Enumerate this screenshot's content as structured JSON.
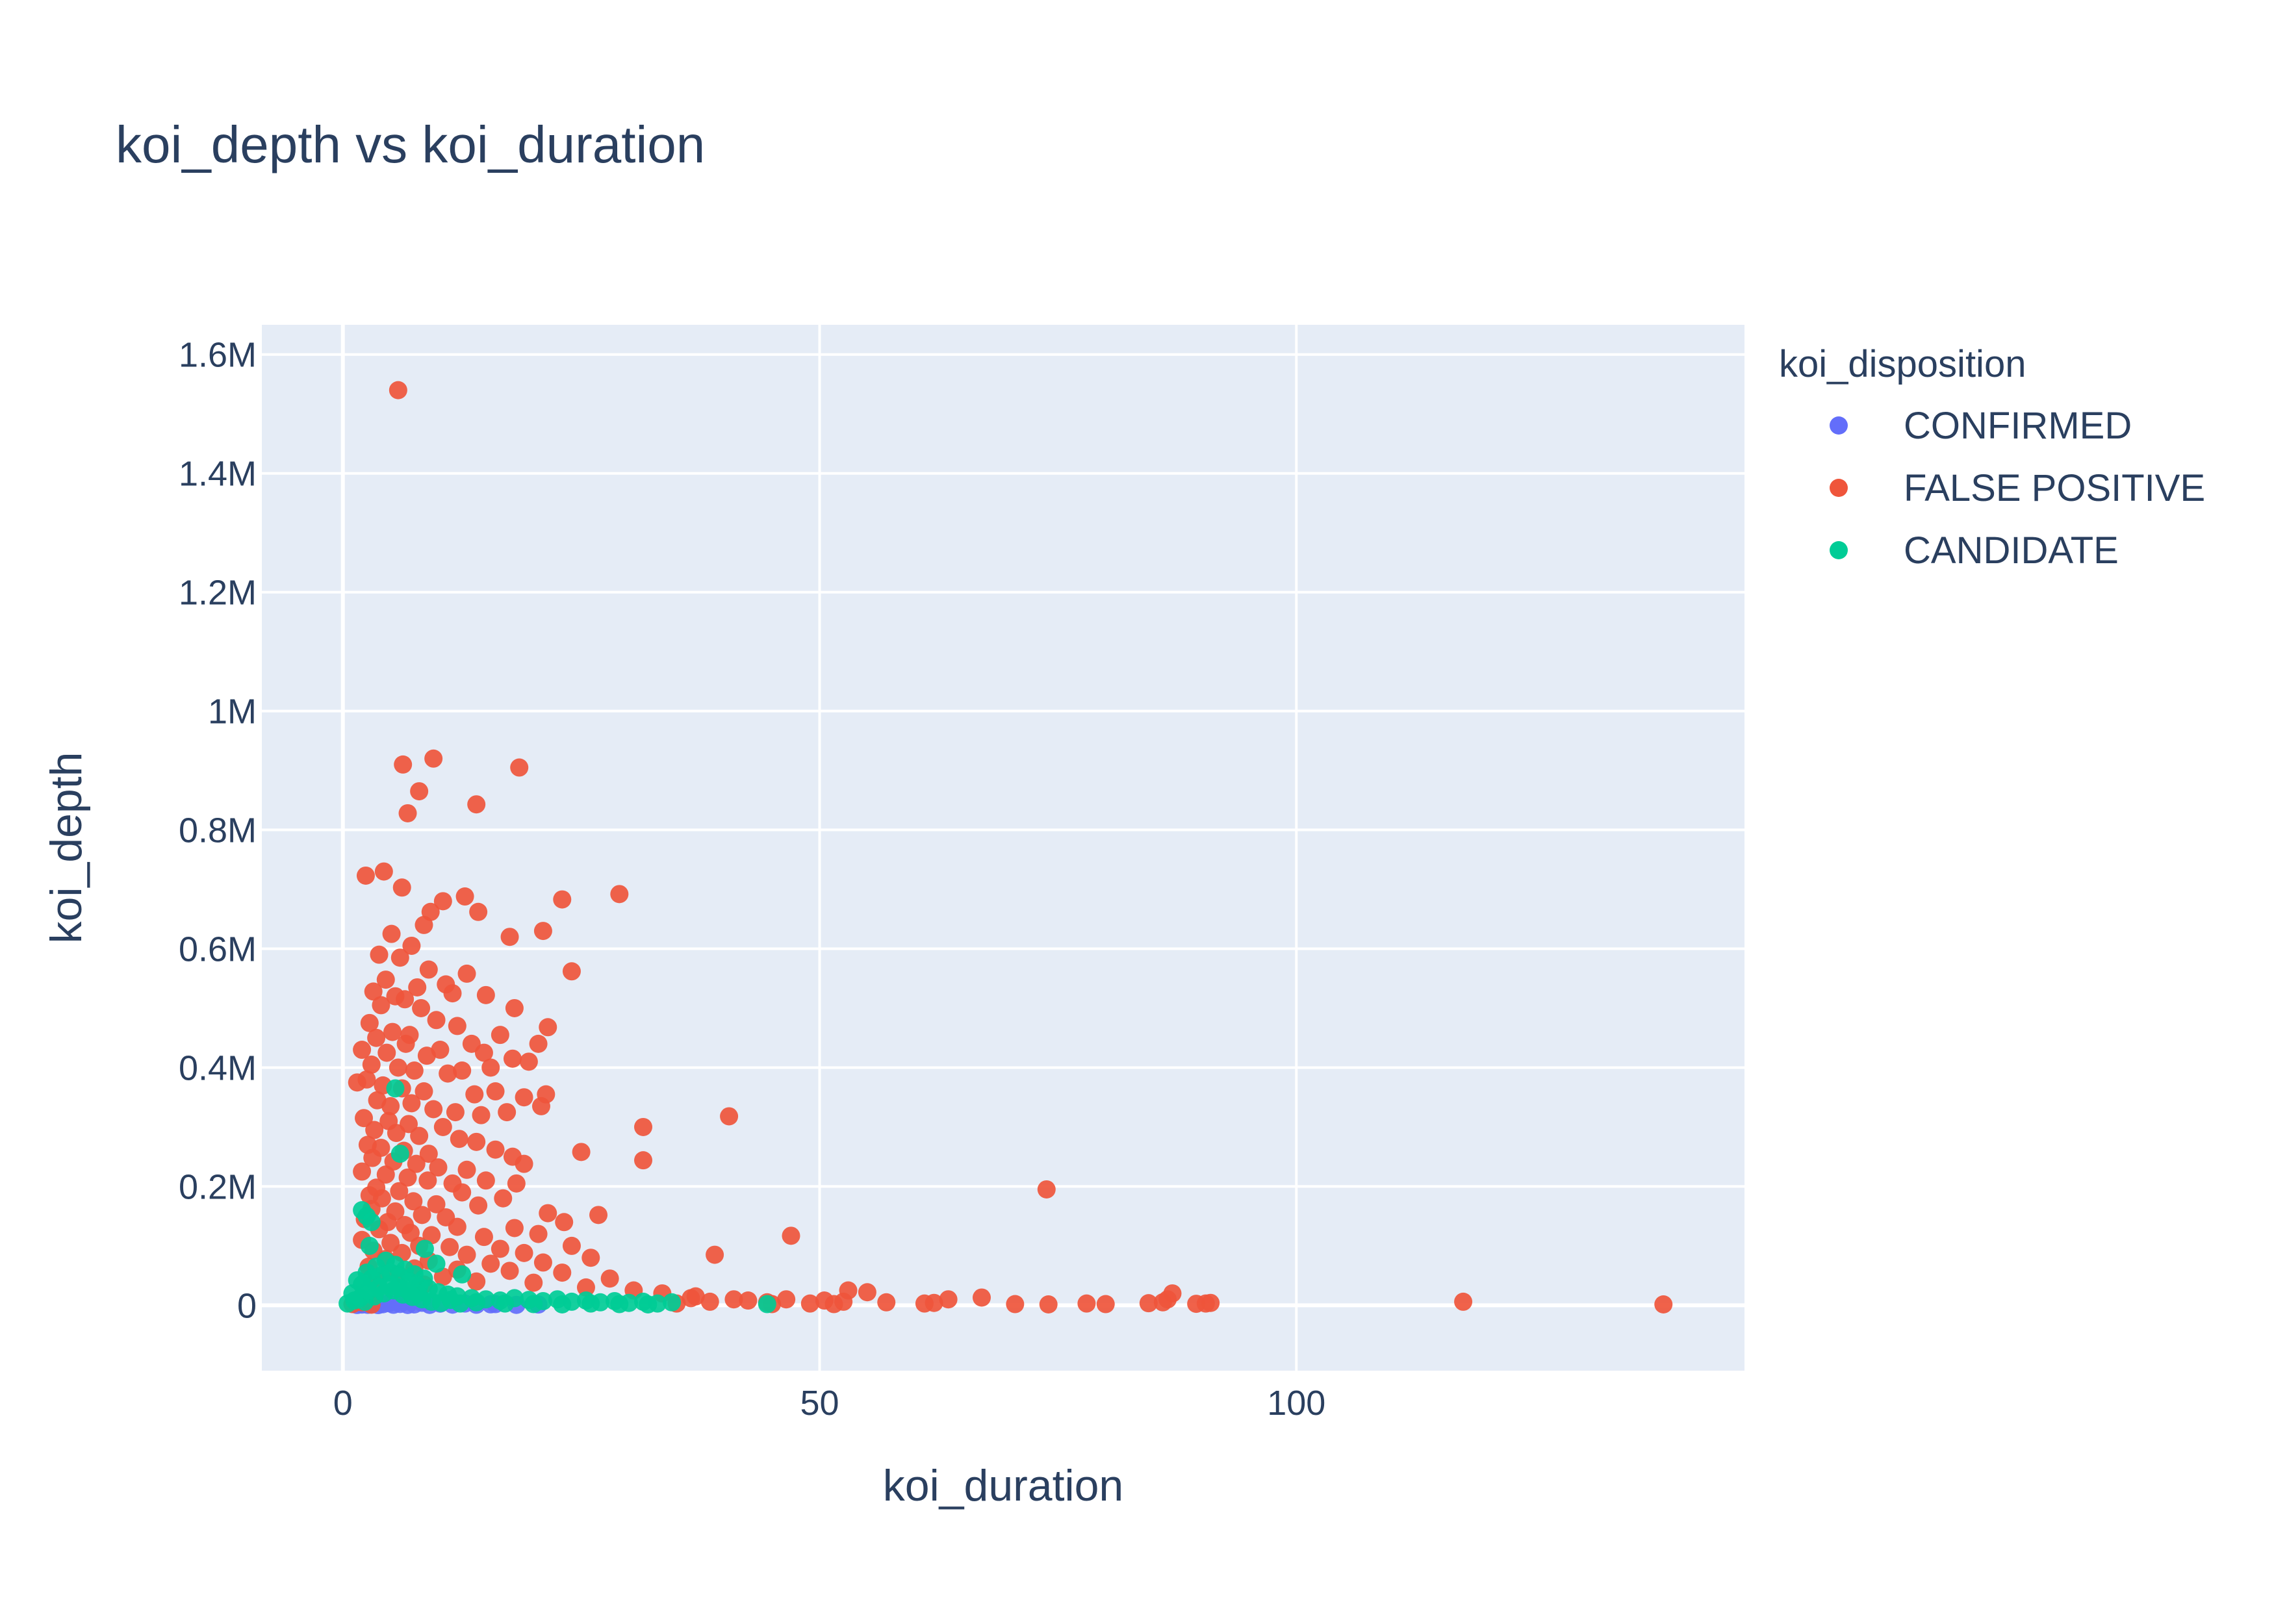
{
  "chart_data": {
    "type": "scatter",
    "title": "koi_depth vs koi_duration",
    "xlabel": "koi_duration",
    "ylabel": "koi_depth",
    "xlim": [
      -8.5,
      147
    ],
    "ylim": [
      -110000,
      1650000
    ],
    "x_ticks": [
      {
        "value": 0,
        "label": "0"
      },
      {
        "value": 50,
        "label": "50"
      },
      {
        "value": 100,
        "label": "100"
      }
    ],
    "y_ticks": [
      {
        "value": 0,
        "label": "0"
      },
      {
        "value": 200000,
        "label": "0.2M"
      },
      {
        "value": 400000,
        "label": "0.4M"
      },
      {
        "value": 600000,
        "label": "0.6M"
      },
      {
        "value": 800000,
        "label": "0.8M"
      },
      {
        "value": 1000000,
        "label": "1M"
      },
      {
        "value": 1200000,
        "label": "1.2M"
      },
      {
        "value": 1400000,
        "label": "1.4M"
      },
      {
        "value": 1600000,
        "label": "1.6M"
      }
    ],
    "grid": true,
    "plot_background": "#e5ecf6",
    "legend": {
      "title": "koi_disposition",
      "position": "right"
    },
    "series": [
      {
        "name": "CONFIRMED",
        "color": "#636efa",
        "points": [
          [
            1.5,
            500
          ],
          [
            2.0,
            1200
          ],
          [
            2.6,
            800
          ],
          [
            3.1,
            2500
          ],
          [
            3.7,
            400
          ],
          [
            4.2,
            1800
          ],
          [
            4.8,
            3500
          ],
          [
            5.3,
            900
          ],
          [
            6.0,
            2200
          ],
          [
            6.8,
            600
          ],
          [
            7.5,
            1500
          ],
          [
            8.3,
            4200
          ],
          [
            9.1,
            700
          ],
          [
            10.2,
            2800
          ],
          [
            11.5,
            1100
          ],
          [
            12.8,
            3000
          ],
          [
            14.0,
            900
          ],
          [
            15.5,
            1600
          ],
          [
            16.0,
            2000
          ],
          [
            18.2,
            700
          ],
          [
            20.5,
            1300
          ]
        ]
      },
      {
        "name": "FALSE POSITIVE",
        "color": "#ef553b",
        "points": [
          [
            5.8,
            1540000
          ],
          [
            9.5,
            920000
          ],
          [
            6.3,
            910000
          ],
          [
            18.5,
            905000
          ],
          [
            8.0,
            865000
          ],
          [
            14.0,
            843000
          ],
          [
            6.8,
            828000
          ],
          [
            4.3,
            730000
          ],
          [
            2.4,
            723000
          ],
          [
            6.2,
            703000
          ],
          [
            29.0,
            692000
          ],
          [
            12.8,
            688000
          ],
          [
            23.0,
            683000
          ],
          [
            10.5,
            680000
          ],
          [
            9.2,
            662000
          ],
          [
            14.2,
            662000
          ],
          [
            8.5,
            640000
          ],
          [
            21.0,
            630000
          ],
          [
            5.1,
            625000
          ],
          [
            17.5,
            620000
          ],
          [
            7.2,
            605000
          ],
          [
            3.8,
            590000
          ],
          [
            6.0,
            585000
          ],
          [
            9.0,
            565000
          ],
          [
            13.0,
            558000
          ],
          [
            24.0,
            562000
          ],
          [
            4.5,
            548000
          ],
          [
            7.8,
            535000
          ],
          [
            3.2,
            528000
          ],
          [
            10.8,
            540000
          ],
          [
            5.5,
            520000
          ],
          [
            6.5,
            515000
          ],
          [
            11.5,
            525000
          ],
          [
            15.0,
            522000
          ],
          [
            4.0,
            505000
          ],
          [
            8.2,
            500000
          ],
          [
            18.0,
            500000
          ],
          [
            9.8,
            480000
          ],
          [
            2.8,
            475000
          ],
          [
            12.0,
            470000
          ],
          [
            21.5,
            468000
          ],
          [
            5.2,
            460000
          ],
          [
            7.0,
            455000
          ],
          [
            16.5,
            455000
          ],
          [
            3.5,
            450000
          ],
          [
            6.6,
            440000
          ],
          [
            13.5,
            440000
          ],
          [
            20.5,
            440000
          ],
          [
            2.0,
            430000
          ],
          [
            4.6,
            425000
          ],
          [
            8.8,
            420000
          ],
          [
            10.2,
            430000
          ],
          [
            14.8,
            425000
          ],
          [
            17.8,
            415000
          ],
          [
            19.5,
            410000
          ],
          [
            3.0,
            405000
          ],
          [
            5.8,
            400000
          ],
          [
            7.5,
            395000
          ],
          [
            11.0,
            390000
          ],
          [
            12.5,
            395000
          ],
          [
            15.5,
            400000
          ],
          [
            1.5,
            375000
          ],
          [
            2.5,
            380000
          ],
          [
            4.2,
            370000
          ],
          [
            6.2,
            365000
          ],
          [
            8.5,
            360000
          ],
          [
            13.8,
            355000
          ],
          [
            16.0,
            360000
          ],
          [
            19.0,
            350000
          ],
          [
            21.3,
            355000
          ],
          [
            20.8,
            335000
          ],
          [
            3.6,
            345000
          ],
          [
            5.0,
            335000
          ],
          [
            7.2,
            340000
          ],
          [
            9.5,
            330000
          ],
          [
            11.8,
            325000
          ],
          [
            14.5,
            320000
          ],
          [
            17.2,
            325000
          ],
          [
            2.2,
            315000
          ],
          [
            4.8,
            310000
          ],
          [
            6.9,
            305000
          ],
          [
            10.5,
            300000
          ],
          [
            31.5,
            300000
          ],
          [
            40.5,
            318000
          ],
          [
            3.3,
            295000
          ],
          [
            5.6,
            290000
          ],
          [
            8.0,
            285000
          ],
          [
            12.2,
            280000
          ],
          [
            14.0,
            275000
          ],
          [
            2.6,
            270000
          ],
          [
            4.0,
            265000
          ],
          [
            6.4,
            260000
          ],
          [
            9.0,
            255000
          ],
          [
            16.0,
            262000
          ],
          [
            17.8,
            250000
          ],
          [
            25.0,
            258000
          ],
          [
            3.1,
            248000
          ],
          [
            5.3,
            242000
          ],
          [
            7.7,
            238000
          ],
          [
            31.5,
            244000
          ],
          [
            10.0,
            232000
          ],
          [
            13.0,
            228000
          ],
          [
            19.0,
            238000
          ],
          [
            2.0,
            225000
          ],
          [
            4.5,
            220000
          ],
          [
            6.8,
            215000
          ],
          [
            8.9,
            210000
          ],
          [
            11.5,
            205000
          ],
          [
            15.0,
            210000
          ],
          [
            18.2,
            205000
          ],
          [
            3.5,
            198000
          ],
          [
            5.9,
            192000
          ],
          [
            12.5,
            190000
          ],
          [
            73.8,
            195000
          ],
          [
            2.8,
            185000
          ],
          [
            4.1,
            180000
          ],
          [
            7.4,
            175000
          ],
          [
            9.8,
            170000
          ],
          [
            14.2,
            168000
          ],
          [
            16.8,
            180000
          ],
          [
            3.0,
            162000
          ],
          [
            5.5,
            158000
          ],
          [
            8.3,
            152000
          ],
          [
            21.5,
            155000
          ],
          [
            26.8,
            152000
          ],
          [
            10.8,
            148000
          ],
          [
            2.3,
            145000
          ],
          [
            4.7,
            140000
          ],
          [
            6.5,
            135000
          ],
          [
            12.0,
            132000
          ],
          [
            23.2,
            140000
          ],
          [
            18.0,
            130000
          ],
          [
            3.8,
            128000
          ],
          [
            7.1,
            122000
          ],
          [
            9.3,
            118000
          ],
          [
            14.8,
            115000
          ],
          [
            20.5,
            120000
          ],
          [
            47.0,
            117000
          ],
          [
            2.0,
            110000
          ],
          [
            5.0,
            105000
          ],
          [
            8.0,
            100000
          ],
          [
            11.2,
            98000
          ],
          [
            16.5,
            95000
          ],
          [
            24.0,
            100000
          ],
          [
            3.2,
            92000
          ],
          [
            6.2,
            88000
          ],
          [
            13.0,
            85000
          ],
          [
            19.0,
            88000
          ],
          [
            26.0,
            80000
          ],
          [
            39.0,
            85000
          ],
          [
            4.5,
            78000
          ],
          [
            9.0,
            75000
          ],
          [
            15.5,
            70000
          ],
          [
            21.0,
            72000
          ],
          [
            2.7,
            65000
          ],
          [
            7.5,
            62000
          ],
          [
            12.0,
            60000
          ],
          [
            17.5,
            58000
          ],
          [
            23.0,
            55000
          ],
          [
            5.8,
            52000
          ],
          [
            10.5,
            48000
          ],
          [
            28.0,
            45000
          ],
          [
            3.5,
            42000
          ],
          [
            14.0,
            40000
          ],
          [
            20.0,
            38000
          ],
          [
            8.5,
            35000
          ],
          [
            25.5,
            30000
          ],
          [
            30.5,
            25000
          ],
          [
            33.5,
            20000
          ],
          [
            37.0,
            15000
          ],
          [
            41.0,
            10000
          ],
          [
            44.5,
            5000
          ],
          [
            36.5,
            12000
          ],
          [
            42.5,
            8000
          ],
          [
            46.5,
            10000
          ],
          [
            49.0,
            3000
          ],
          [
            50.5,
            8000
          ],
          [
            51.5,
            2000
          ],
          [
            53.0,
            25000
          ],
          [
            55.0,
            22000
          ],
          [
            52.5,
            6000
          ],
          [
            57.0,
            5000
          ],
          [
            61.0,
            3000
          ],
          [
            62.0,
            4000
          ],
          [
            63.5,
            10000
          ],
          [
            67.0,
            13000
          ],
          [
            70.5,
            2000
          ],
          [
            74.0,
            1500
          ],
          [
            78.0,
            3000
          ],
          [
            80.0,
            2000
          ],
          [
            84.5,
            3500
          ],
          [
            86.0,
            5000
          ],
          [
            87.0,
            20000
          ],
          [
            86.5,
            10000
          ],
          [
            89.5,
            2500
          ],
          [
            90.5,
            3000
          ],
          [
            91.0,
            4000
          ],
          [
            117.5,
            6000
          ],
          [
            138.5,
            1500
          ],
          [
            1.0,
            2000
          ],
          [
            2.0,
            5000
          ],
          [
            3.0,
            1000
          ],
          [
            35.0,
            3000
          ],
          [
            38.5,
            6000
          ],
          [
            45.0,
            2000
          ]
        ]
      },
      {
        "name": "CANDIDATE",
        "color": "#00cc96",
        "points": [
          [
            5.5,
            365000
          ],
          [
            6.0,
            255000
          ],
          [
            2.0,
            160000
          ],
          [
            2.5,
            150000
          ],
          [
            3.0,
            140000
          ],
          [
            8.6,
            95000
          ],
          [
            2.8,
            100000
          ],
          [
            9.8,
            70000
          ],
          [
            12.5,
            52000
          ],
          [
            1.5,
            42000
          ],
          [
            2.5,
            55000
          ],
          [
            3.5,
            65000
          ],
          [
            4.5,
            75000
          ],
          [
            5.5,
            68000
          ],
          [
            6.5,
            60000
          ],
          [
            7.5,
            52000
          ],
          [
            8.5,
            45000
          ],
          [
            1.0,
            20000
          ],
          [
            2.0,
            35000
          ],
          [
            3.0,
            45000
          ],
          [
            4.0,
            50000
          ],
          [
            5.0,
            55000
          ],
          [
            6.0,
            48000
          ],
          [
            7.0,
            40000
          ],
          [
            8.0,
            32000
          ],
          [
            9.0,
            28000
          ],
          [
            10.0,
            22000
          ],
          [
            11.0,
            18000
          ],
          [
            12.0,
            15000
          ],
          [
            13.5,
            12000
          ],
          [
            15.0,
            10000
          ],
          [
            16.5,
            8000
          ],
          [
            18.0,
            12000
          ],
          [
            19.5,
            9000
          ],
          [
            21.0,
            7000
          ],
          [
            22.5,
            10000
          ],
          [
            24.0,
            6000
          ],
          [
            25.5,
            8000
          ],
          [
            27.0,
            5000
          ],
          [
            28.5,
            7000
          ],
          [
            30.0,
            4000
          ],
          [
            31.5,
            6000
          ],
          [
            33.0,
            3000
          ],
          [
            34.5,
            5000
          ],
          [
            44.5,
            2000
          ],
          [
            0.5,
            3000
          ],
          [
            1.2,
            8000
          ],
          [
            1.8,
            12000
          ],
          [
            2.3,
            6000
          ],
          [
            3.3,
            15000
          ],
          [
            4.3,
            20000
          ],
          [
            5.3,
            25000
          ],
          [
            6.3,
            18000
          ],
          [
            7.3,
            14000
          ],
          [
            8.3,
            10000
          ],
          [
            9.3,
            6000
          ],
          [
            10.3,
            4000
          ],
          [
            11.3,
            9000
          ],
          [
            12.3,
            3000
          ],
          [
            14.0,
            5000
          ],
          [
            17.0,
            3000
          ],
          [
            20.0,
            2000
          ],
          [
            23.0,
            1500
          ],
          [
            26.0,
            3000
          ],
          [
            29.0,
            2000
          ],
          [
            32.0,
            1500
          ],
          [
            3.8,
            30000
          ],
          [
            4.8,
            35000
          ],
          [
            5.8,
            30000
          ],
          [
            6.8,
            25000
          ],
          [
            2.7,
            25000
          ],
          [
            7.8,
            20000
          ]
        ]
      }
    ]
  }
}
